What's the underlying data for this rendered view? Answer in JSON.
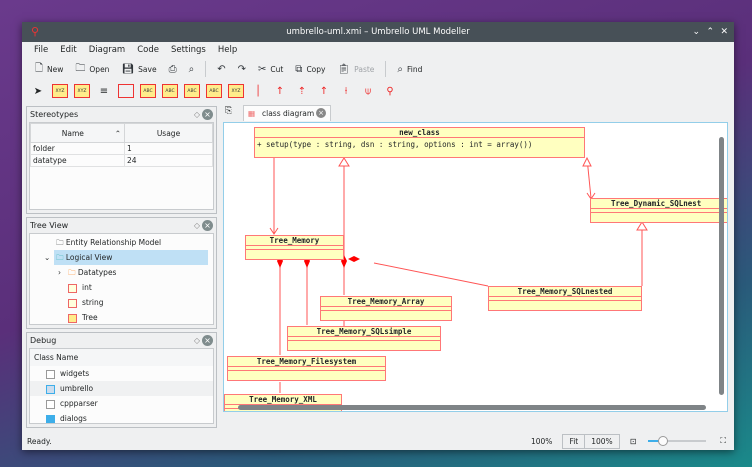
{
  "window": {
    "title": "umbrello-uml.xmi – Umbrello UML Modeller"
  },
  "menu": [
    "File",
    "Edit",
    "Diagram",
    "Code",
    "Settings",
    "Help"
  ],
  "toolbar": {
    "new": "New",
    "open": "Open",
    "save": "Save",
    "undo": "↶",
    "redo": "↷",
    "cut": "Cut",
    "copy": "Copy",
    "paste": "Paste",
    "find": "Find"
  },
  "stereotypes": {
    "title": "Stereotypes",
    "columns": [
      "Name",
      "Usage"
    ],
    "rows": [
      [
        "folder",
        "1"
      ],
      [
        "datatype",
        "24"
      ]
    ]
  },
  "tree_view": {
    "title": "Tree View",
    "items": [
      "Entity Relationship Model",
      "Logical View",
      "Datatypes",
      "int",
      "string",
      "Tree"
    ]
  },
  "debug": {
    "title": "Debug",
    "column": "Class Name",
    "items": [
      {
        "label": "widgets",
        "checked": false
      },
      {
        "label": "umbrello",
        "checked": true
      },
      {
        "label": "cppparser",
        "checked": false
      },
      {
        "label": "dialogs",
        "checked": true
      }
    ]
  },
  "tab": {
    "label": "class diagram"
  },
  "diagram": {
    "classes": {
      "new_class": "new_class",
      "new_class_op": "+ setup(type : string, dsn : string, options : int = array())",
      "tree_memory": "Tree_Memory",
      "tree_dynamic": "Tree_Dynamic_SQLnest",
      "sqlnested": "Tree_Memory_SQLnested",
      "array": "Tree_Memory_Array",
      "sqlsimple": "Tree_Memory_SQLsimple",
      "filesystem": "Tree_Memory_Filesystem",
      "xml": "Tree_Memory_XML"
    },
    "line_color": "#ff4444",
    "fill_color": "#ffffc0"
  },
  "status": {
    "text": "Ready.",
    "zoom": "100%",
    "fit": "Fit",
    "zoom_btn": "100%",
    "zoom_slider": 0.25
  }
}
